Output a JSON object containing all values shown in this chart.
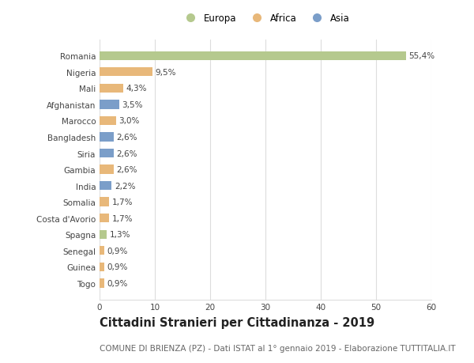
{
  "categories": [
    "Romania",
    "Nigeria",
    "Mali",
    "Afghanistan",
    "Marocco",
    "Bangladesh",
    "Siria",
    "Gambia",
    "India",
    "Somalia",
    "Costa d'Avorio",
    "Spagna",
    "Senegal",
    "Guinea",
    "Togo"
  ],
  "values": [
    55.4,
    9.5,
    4.3,
    3.5,
    3.0,
    2.6,
    2.6,
    2.6,
    2.2,
    1.7,
    1.7,
    1.3,
    0.9,
    0.9,
    0.9
  ],
  "labels": [
    "55,4%",
    "9,5%",
    "4,3%",
    "3,5%",
    "3,0%",
    "2,6%",
    "2,6%",
    "2,6%",
    "2,2%",
    "1,7%",
    "1,7%",
    "1,3%",
    "0,9%",
    "0,9%",
    "0,9%"
  ],
  "continents": [
    "Europa",
    "Africa",
    "Africa",
    "Asia",
    "Africa",
    "Asia",
    "Asia",
    "Africa",
    "Asia",
    "Africa",
    "Africa",
    "Europa",
    "Africa",
    "Africa",
    "Africa"
  ],
  "colors": {
    "Europa": "#b5c98e",
    "Africa": "#e8b87a",
    "Asia": "#7b9ec9"
  },
  "title": "Cittadini Stranieri per Cittadinanza - 2019",
  "subtitle": "COMUNE DI BRIENZA (PZ) - Dati ISTAT al 1° gennaio 2019 - Elaborazione TUTTITALIA.IT",
  "xlim": [
    0,
    60
  ],
  "xticks": [
    0,
    10,
    20,
    30,
    40,
    50,
    60
  ],
  "background_color": "#ffffff",
  "grid_color": "#dddddd",
  "bar_height": 0.55,
  "title_fontsize": 10.5,
  "subtitle_fontsize": 7.5,
  "label_fontsize": 7.5,
  "tick_fontsize": 7.5,
  "legend_fontsize": 8.5
}
